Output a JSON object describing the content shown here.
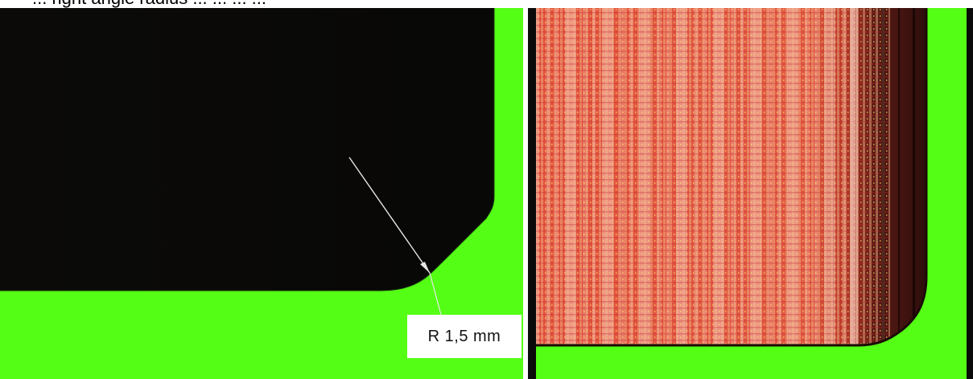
{
  "figure": {
    "top_caption": "... right angle radius ... ... ... ...",
    "left_panel": {
      "annotation": "R 1,5 mm",
      "colors": {
        "background": "#55ff15",
        "part": "#0b0a08",
        "annotation_line": "#e6e6e6"
      }
    },
    "right_panel": {
      "colors": {
        "background": "#55ff15",
        "texture_base": "#e2533f",
        "texture_highlight": "#f2b29a",
        "texture_dark_edge": "#2a0d0b"
      }
    }
  }
}
